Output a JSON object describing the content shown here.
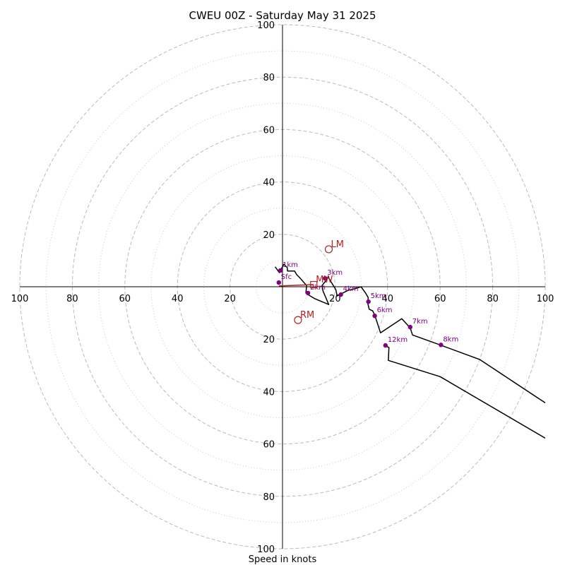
{
  "chart_data": {
    "type": "hodograph",
    "title": "CWEU 00Z - Saturday May 31 2025",
    "xlabel": "Speed in knots",
    "ylabel": "",
    "xlim": [
      -100,
      100
    ],
    "ylim": [
      -100,
      100
    ],
    "rings": [
      20,
      40,
      60,
      80,
      100
    ],
    "minor_rings": [
      10,
      30,
      50,
      70,
      90
    ],
    "x_ticks": [
      {
        "value": -100,
        "label": "100"
      },
      {
        "value": -80,
        "label": "80"
      },
      {
        "value": -60,
        "label": "60"
      },
      {
        "value": -40,
        "label": "40"
      },
      {
        "value": -20,
        "label": "20"
      },
      {
        "value": 20,
        "label": "20"
      },
      {
        "value": 40,
        "label": "40"
      },
      {
        "value": 60,
        "label": "60"
      },
      {
        "value": 80,
        "label": "80"
      },
      {
        "value": 100,
        "label": "100"
      }
    ],
    "y_ticks": [
      {
        "value": 100,
        "label": "100"
      },
      {
        "value": 80,
        "label": "80"
      },
      {
        "value": 60,
        "label": "60"
      },
      {
        "value": 40,
        "label": "40"
      },
      {
        "value": 20,
        "label": "20"
      },
      {
        "value": -20,
        "label": "20"
      },
      {
        "value": -40,
        "label": "40"
      },
      {
        "value": -60,
        "label": "60"
      },
      {
        "value": -80,
        "label": "80"
      },
      {
        "value": -100,
        "label": "100"
      }
    ],
    "series": [
      {
        "color": "#000000",
        "points": [
          [
            -2.8,
            7.6
          ],
          [
            -1.2,
            5.4
          ],
          [
            0.5,
            8.6
          ],
          [
            1.8,
            7.3
          ],
          [
            1.9,
            6.0
          ],
          [
            4.6,
            6.0
          ],
          [
            5.4,
            4.6
          ],
          [
            6.5,
            3.5
          ],
          [
            8.6,
            1.1
          ],
          [
            9.2,
            0.5
          ],
          [
            8.9,
            -2.4
          ],
          [
            9.7,
            -3.0
          ],
          [
            12.4,
            -4.6
          ],
          [
            17.6,
            -6.8
          ],
          [
            15.4,
            -1.6
          ],
          [
            15.1,
            0.5
          ],
          [
            16.8,
            2.7
          ],
          [
            17.3,
            3.8
          ],
          [
            20.3,
            -1.1
          ],
          [
            20.8,
            -3.5
          ],
          [
            24.9,
            -1.4
          ],
          [
            27.8,
            -0.7
          ],
          [
            29.9,
            0.0
          ],
          [
            31.6,
            -2.4
          ],
          [
            32.6,
            -4.1
          ],
          [
            32.5,
            -6.5
          ],
          [
            33.0,
            -8.6
          ],
          [
            34.3,
            -9.2
          ],
          [
            35.1,
            -10.8
          ],
          [
            37.3,
            -17.6
          ],
          [
            45.4,
            -12.2
          ],
          [
            48.6,
            -15.7
          ],
          [
            49.5,
            -18.4
          ],
          [
            60.5,
            -22.4
          ],
          [
            75.1,
            -27.8
          ],
          [
            100.0,
            -44.3
          ]
        ]
      },
      {
        "color": "#000000",
        "points": [
          [
            38.9,
            -22.4
          ],
          [
            40.5,
            -23.2
          ],
          [
            40.3,
            -28.1
          ],
          [
            60.0,
            -34.3
          ],
          [
            100.0,
            -57.8
          ]
        ]
      }
    ],
    "height_markers": [
      {
        "label": "Sfc",
        "x": -1.4,
        "y": 1.6
      },
      {
        "label": "1km",
        "x": -0.8,
        "y": 6.2
      },
      {
        "label": "2km",
        "x": 9.7,
        "y": -2.4
      },
      {
        "label": "3km",
        "x": 16.2,
        "y": 3.2
      },
      {
        "label": "4km",
        "x": 22.2,
        "y": -3.0
      },
      {
        "label": "5km",
        "x": 32.7,
        "y": -5.7
      },
      {
        "label": "6km",
        "x": 35.1,
        "y": -11.1
      },
      {
        "label": "7km",
        "x": 48.6,
        "y": -15.4
      },
      {
        "label": "8km",
        "x": 60.3,
        "y": -22.2
      },
      {
        "label": "12km",
        "x": 39.2,
        "y": -22.4
      }
    ],
    "motions": [
      {
        "label": "LM",
        "x": 17.6,
        "y": 14.3,
        "marker": "circle"
      },
      {
        "label": "RM",
        "x": 5.9,
        "y": -12.7,
        "marker": "circle"
      },
      {
        "label": "MW",
        "x": 11.9,
        "y": 0.8,
        "marker": "square"
      }
    ],
    "shear_vector": {
      "from": {
        "x": -1.4,
        "y": 0.3
      },
      "to": {
        "x": 11.9,
        "y": 0.8
      }
    },
    "colors": {
      "trace": "#000000",
      "heights": "#800080",
      "motions": "#b22222",
      "grid": "#bbbbbb"
    }
  }
}
